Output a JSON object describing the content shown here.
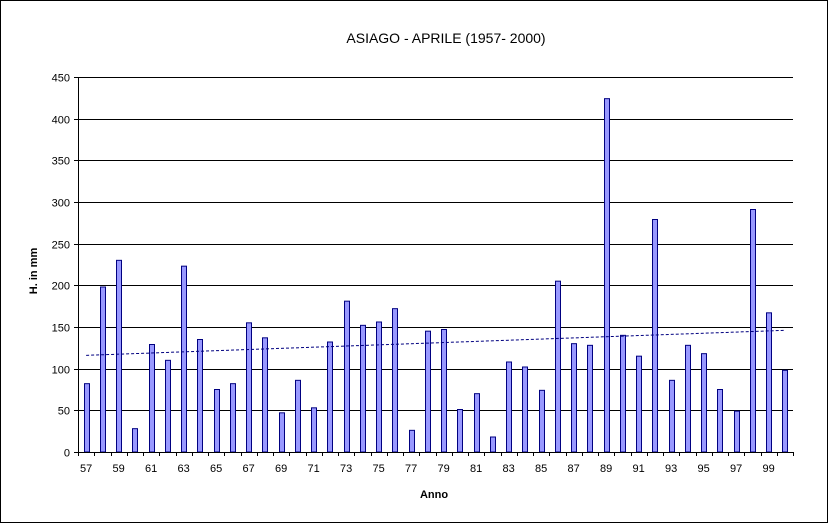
{
  "chart_data": {
    "type": "bar",
    "title": "ASIAGO - APRILE (1957- 2000)",
    "xlabel": "Anno",
    "ylabel": "H. in mm",
    "ylim": [
      0,
      450
    ],
    "yticks": [
      0,
      50,
      100,
      150,
      200,
      250,
      300,
      350,
      400,
      450
    ],
    "grid": true,
    "legend": "none",
    "categories": [
      "57",
      "58",
      "59",
      "60",
      "61",
      "62",
      "63",
      "64",
      "65",
      "66",
      "67",
      "68",
      "69",
      "70",
      "71",
      "72",
      "73",
      "74",
      "75",
      "76",
      "77",
      "78",
      "79",
      "80",
      "81",
      "82",
      "83",
      "84",
      "85",
      "86",
      "87",
      "88",
      "89",
      "90",
      "91",
      "92",
      "93",
      "94",
      "95",
      "96",
      "97",
      "98",
      "99",
      "00"
    ],
    "x_tick_labels": [
      "57",
      "59",
      "61",
      "63",
      "65",
      "67",
      "69",
      "71",
      "73",
      "75",
      "77",
      "79",
      "81",
      "83",
      "85",
      "87",
      "89",
      "91",
      "93",
      "95",
      "97",
      "99"
    ],
    "values": [
      82,
      198,
      230,
      28,
      129,
      110,
      223,
      135,
      75,
      82,
      155,
      137,
      47,
      86,
      53,
      132,
      181,
      152,
      156,
      172,
      26,
      145,
      147,
      51,
      70,
      18,
      108,
      102,
      74,
      205,
      130,
      128,
      424,
      140,
      115,
      279,
      86,
      128,
      118,
      75,
      49,
      291,
      167,
      98
    ],
    "trendline": {
      "type": "linear",
      "start": 116,
      "end": 146
    },
    "colors": {
      "bar_fill": "#9999ff",
      "bar_stroke": "#000080",
      "trend": "#000080",
      "grid": "#000000"
    }
  }
}
